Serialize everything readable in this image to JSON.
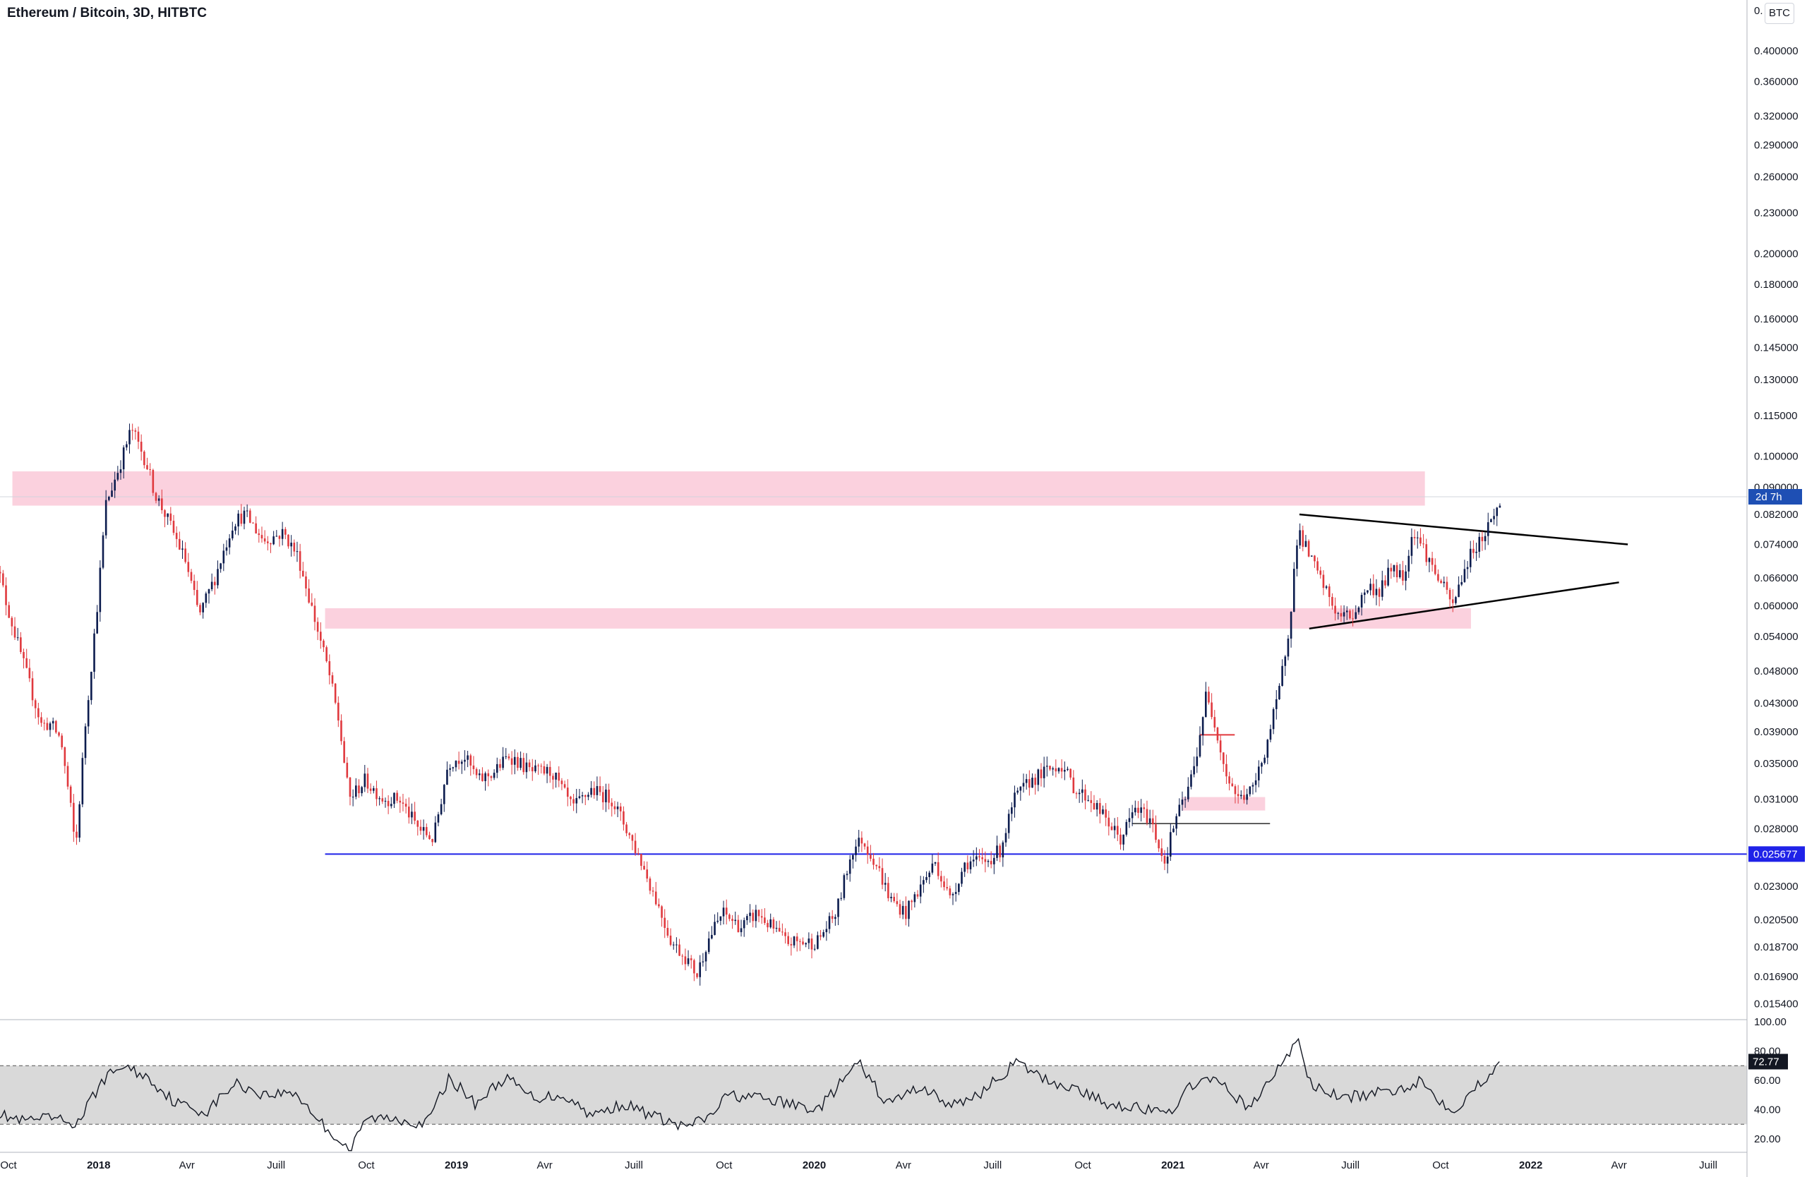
{
  "header": {
    "title": "Ethereum / Bitcoin, 3D, HITBTC",
    "currency": "BTC"
  },
  "colors": {
    "up": "#0c1c4e",
    "down": "#e0393e",
    "zone": "#fbd1de",
    "support_line": "#1f22e8",
    "rsi_band": "#d9d9d9"
  },
  "price_axis": {
    "ticks": [
      "0.400000",
      "0.360000",
      "0.320000",
      "0.290000",
      "0.260000",
      "0.230000",
      "0.200000",
      "0.180000",
      "0.160000",
      "0.145000",
      "0.130000",
      "0.115000",
      "0.100000",
      "0.090000",
      "0.082000",
      "0.074000",
      "0.066000",
      "0.060000",
      "0.054000",
      "0.048000",
      "0.043000",
      "0.039000",
      "0.035000",
      "0.031000",
      "0.028000",
      "0.023000",
      "0.020500",
      "0.018700",
      "0.016900",
      "0.015400"
    ],
    "top_partial": "0.",
    "countdown_label": "2d 7h",
    "support_label": "0.025677"
  },
  "time_axis": {
    "ticks": [
      {
        "label": "Oct",
        "bold": false
      },
      {
        "label": "2018",
        "bold": true
      },
      {
        "label": "Avr",
        "bold": false
      },
      {
        "label": "Juill",
        "bold": false
      },
      {
        "label": "Oct",
        "bold": false
      },
      {
        "label": "2019",
        "bold": true
      },
      {
        "label": "Avr",
        "bold": false
      },
      {
        "label": "Juill",
        "bold": false
      },
      {
        "label": "Oct",
        "bold": false
      },
      {
        "label": "2020",
        "bold": true
      },
      {
        "label": "Avr",
        "bold": false
      },
      {
        "label": "Juill",
        "bold": false
      },
      {
        "label": "Oct",
        "bold": false
      },
      {
        "label": "2021",
        "bold": true
      },
      {
        "label": "Avr",
        "bold": false
      },
      {
        "label": "Juill",
        "bold": false
      },
      {
        "label": "Oct",
        "bold": false
      },
      {
        "label": "2022",
        "bold": true
      },
      {
        "label": "Avr",
        "bold": false
      },
      {
        "label": "Juill",
        "bold": false
      }
    ]
  },
  "rsi_axis": {
    "ticks": [
      "100.00",
      "80.00",
      "60.00",
      "40.00",
      "20.00"
    ],
    "current_label": "72.77"
  },
  "chart_data": {
    "type": "candlestick",
    "symbol": "ETH/BTC",
    "scale": "log",
    "price_path": [
      [
        "2017-09-15",
        0.075
      ],
      [
        "2017-10-01",
        0.06
      ],
      [
        "2017-10-20",
        0.048
      ],
      [
        "2017-11-05",
        0.04
      ],
      [
        "2017-11-15",
        0.04
      ],
      [
        "2017-11-25",
        0.038
      ],
      [
        "2017-12-05",
        0.03
      ],
      [
        "2017-12-10",
        0.026
      ],
      [
        "2017-12-20",
        0.04
      ],
      [
        "2018-01-01",
        0.06
      ],
      [
        "2018-01-10",
        0.085
      ],
      [
        "2018-01-25",
        0.098
      ],
      [
        "2018-02-05",
        0.11
      ],
      [
        "2018-02-20",
        0.098
      ],
      [
        "2018-03-01",
        0.088
      ],
      [
        "2018-03-15",
        0.08
      ],
      [
        "2018-04-01",
        0.07
      ],
      [
        "2018-04-15",
        0.058
      ],
      [
        "2018-05-01",
        0.066
      ],
      [
        "2018-05-20",
        0.08
      ],
      [
        "2018-06-01",
        0.082
      ],
      [
        "2018-06-20",
        0.075
      ],
      [
        "2018-07-10",
        0.077
      ],
      [
        "2018-07-25",
        0.071
      ],
      [
        "2018-08-10",
        0.058
      ],
      [
        "2018-08-25",
        0.048
      ],
      [
        "2018-09-05",
        0.04
      ],
      [
        "2018-09-15",
        0.031
      ],
      [
        "2018-10-01",
        0.033
      ],
      [
        "2018-10-20",
        0.031
      ],
      [
        "2018-11-05",
        0.031
      ],
      [
        "2018-11-25",
        0.028
      ],
      [
        "2018-12-10",
        0.027
      ],
      [
        "2018-12-25",
        0.035
      ],
      [
        "2019-01-10",
        0.036
      ],
      [
        "2019-01-25",
        0.033
      ],
      [
        "2019-02-10",
        0.034
      ],
      [
        "2019-02-25",
        0.036
      ],
      [
        "2019-03-20",
        0.034
      ],
      [
        "2019-04-10",
        0.034
      ],
      [
        "2019-05-01",
        0.03
      ],
      [
        "2019-05-20",
        0.032
      ],
      [
        "2019-06-10",
        0.031
      ],
      [
        "2019-06-25",
        0.028
      ],
      [
        "2019-07-10",
        0.025
      ],
      [
        "2019-07-25",
        0.022
      ],
      [
        "2019-08-10",
        0.019
      ],
      [
        "2019-08-25",
        0.018
      ],
      [
        "2019-09-05",
        0.017
      ],
      [
        "2019-09-15",
        0.019
      ],
      [
        "2019-10-01",
        0.021
      ],
      [
        "2019-10-20",
        0.02
      ],
      [
        "2019-11-05",
        0.021
      ],
      [
        "2019-11-20",
        0.02
      ],
      [
        "2019-12-05",
        0.019
      ],
      [
        "2019-12-20",
        0.019
      ],
      [
        "2020-01-05",
        0.019
      ],
      [
        "2020-01-25",
        0.021
      ],
      [
        "2020-02-10",
        0.026
      ],
      [
        "2020-02-20",
        0.027
      ],
      [
        "2020-03-05",
        0.025
      ],
      [
        "2020-03-20",
        0.022
      ],
      [
        "2020-04-05",
        0.021
      ],
      [
        "2020-04-20",
        0.023
      ],
      [
        "2020-05-05",
        0.025
      ],
      [
        "2020-05-20",
        0.022
      ],
      [
        "2020-06-05",
        0.025
      ],
      [
        "2020-06-25",
        0.025
      ],
      [
        "2020-07-10",
        0.026
      ],
      [
        "2020-07-25",
        0.031
      ],
      [
        "2020-08-10",
        0.033
      ],
      [
        "2020-08-25",
        0.034
      ],
      [
        "2020-09-10",
        0.035
      ],
      [
        "2020-09-25",
        0.032
      ],
      [
        "2020-10-10",
        0.031
      ],
      [
        "2020-10-25",
        0.029
      ],
      [
        "2020-11-10",
        0.027
      ],
      [
        "2020-11-25",
        0.03
      ],
      [
        "2020-12-10",
        0.029
      ],
      [
        "2020-12-25",
        0.025
      ],
      [
        "2021-01-05",
        0.029
      ],
      [
        "2021-01-15",
        0.031
      ],
      [
        "2021-01-25",
        0.035
      ],
      [
        "2021-02-05",
        0.044
      ],
      [
        "2021-02-15",
        0.04
      ],
      [
        "2021-02-25",
        0.034
      ],
      [
        "2021-03-10",
        0.031
      ],
      [
        "2021-03-25",
        0.032
      ],
      [
        "2021-04-05",
        0.036
      ],
      [
        "2021-04-20",
        0.044
      ],
      [
        "2021-05-01",
        0.056
      ],
      [
        "2021-05-10",
        0.078
      ],
      [
        "2021-05-20",
        0.072
      ],
      [
        "2021-06-01",
        0.066
      ],
      [
        "2021-06-20",
        0.058
      ],
      [
        "2021-07-05",
        0.058
      ],
      [
        "2021-07-20",
        0.064
      ],
      [
        "2021-08-01",
        0.063
      ],
      [
        "2021-08-15",
        0.069
      ],
      [
        "2021-08-25",
        0.066
      ],
      [
        "2021-09-05",
        0.078
      ],
      [
        "2021-09-15",
        0.073
      ],
      [
        "2021-09-25",
        0.068
      ],
      [
        "2021-10-05",
        0.064
      ],
      [
        "2021-10-15",
        0.06
      ],
      [
        "2021-10-25",
        0.067
      ],
      [
        "2021-11-05",
        0.073
      ],
      [
        "2021-11-15",
        0.076
      ],
      [
        "2021-11-25",
        0.082
      ],
      [
        "2021-11-30",
        0.084
      ]
    ],
    "zones": [
      {
        "from": "2017-10-05",
        "to": "2021-09-15",
        "high": 0.095,
        "low": 0.0845
      },
      {
        "from": "2018-08-20",
        "to": "2021-11-01",
        "high": 0.0595,
        "low": 0.0555
      },
      {
        "from": "2021-01-10",
        "to": "2021-04-05",
        "high": 0.0312,
        "low": 0.0298
      }
    ],
    "lines": [
      {
        "name": "support",
        "y": 0.025677,
        "from": "2018-08-20",
        "to": "2022-09-30"
      },
      {
        "name": "triangle-upper",
        "from": [
          "2021-05-10",
          0.082
        ],
        "to": [
          "2022-04-10",
          0.074
        ]
      },
      {
        "name": "triangle-lower",
        "from": [
          "2021-05-20",
          0.0555
        ],
        "to": [
          "2022-04-01",
          0.065
        ]
      }
    ],
    "rsi": {
      "upper_band": 70,
      "lower_band": 30,
      "current": 72.77,
      "path": [
        [
          "2017-09-15",
          38
        ],
        [
          "2017-10-15",
          32
        ],
        [
          "2017-11-15",
          34
        ],
        [
          "2017-12-10",
          30
        ],
        [
          "2018-01-05",
          60
        ],
        [
          "2018-01-25",
          70
        ],
        [
          "2018-02-20",
          62
        ],
        [
          "2018-03-20",
          45
        ],
        [
          "2018-04-20",
          38
        ],
        [
          "2018-05-20",
          58
        ],
        [
          "2018-06-20",
          50
        ],
        [
          "2018-07-20",
          52
        ],
        [
          "2018-08-20",
          28
        ],
        [
          "2018-09-15",
          12
        ],
        [
          "2018-10-01",
          34
        ],
        [
          "2018-11-01",
          34
        ],
        [
          "2018-12-01",
          30
        ],
        [
          "2018-12-25",
          62
        ],
        [
          "2019-01-20",
          44
        ],
        [
          "2019-02-20",
          62
        ],
        [
          "2019-03-20",
          48
        ],
        [
          "2019-04-20",
          50
        ],
        [
          "2019-05-20",
          36
        ],
        [
          "2019-06-20",
          44
        ],
        [
          "2019-07-20",
          36
        ],
        [
          "2019-08-20",
          28
        ],
        [
          "2019-09-15",
          34
        ],
        [
          "2019-10-05",
          50
        ],
        [
          "2019-11-05",
          48
        ],
        [
          "2019-12-05",
          44
        ],
        [
          "2020-01-05",
          40
        ],
        [
          "2020-02-15",
          72
        ],
        [
          "2020-03-15",
          44
        ],
        [
          "2020-04-20",
          56
        ],
        [
          "2020-05-20",
          42
        ],
        [
          "2020-06-20",
          52
        ],
        [
          "2020-07-25",
          72
        ],
        [
          "2020-08-25",
          60
        ],
        [
          "2020-09-25",
          54
        ],
        [
          "2020-10-25",
          44
        ],
        [
          "2020-11-25",
          42
        ],
        [
          "2020-12-25",
          36
        ],
        [
          "2021-01-25",
          60
        ],
        [
          "2021-02-20",
          58
        ],
        [
          "2021-03-20",
          40
        ],
        [
          "2021-04-20",
          70
        ],
        [
          "2021-05-10",
          88
        ],
        [
          "2021-05-20",
          58
        ],
        [
          "2021-06-20",
          48
        ],
        [
          "2021-07-20",
          50
        ],
        [
          "2021-08-20",
          54
        ],
        [
          "2021-09-10",
          60
        ],
        [
          "2021-10-01",
          46
        ],
        [
          "2021-10-15",
          40
        ],
        [
          "2021-11-05",
          54
        ],
        [
          "2021-11-30",
          72.77
        ]
      ]
    }
  }
}
